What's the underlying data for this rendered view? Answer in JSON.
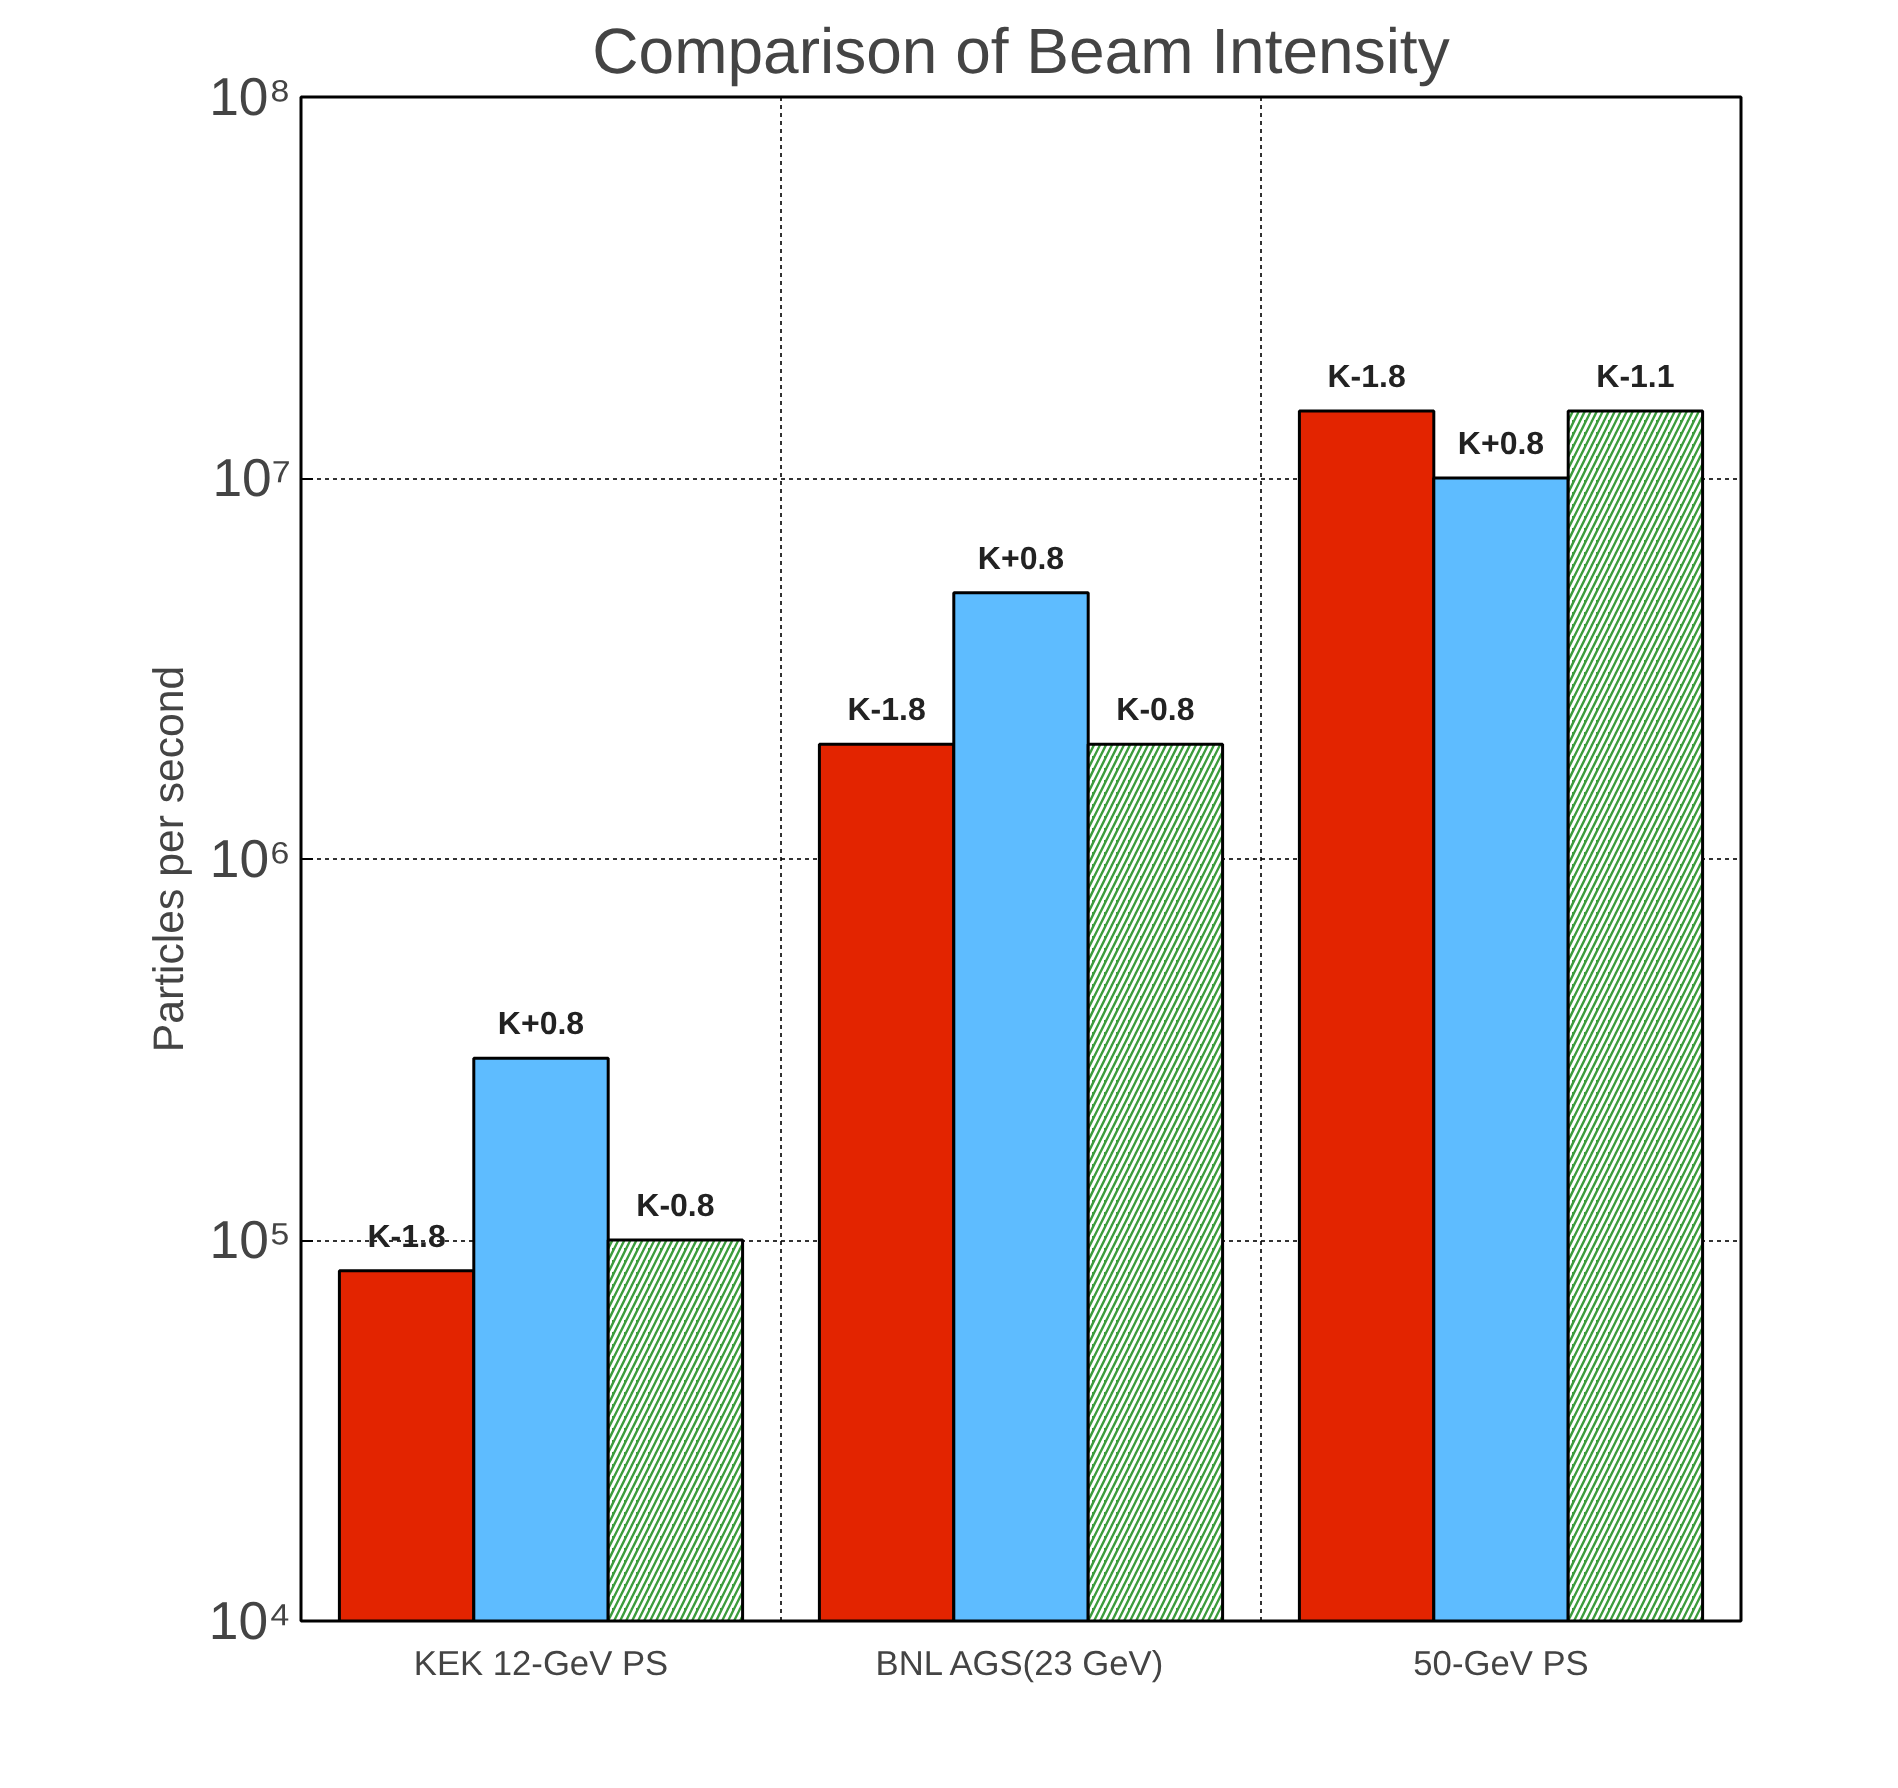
{
  "chart_data": {
    "type": "bar",
    "title": "Comparison of Beam Intensity",
    "ylabel": "Particles per second",
    "categories": [
      "KEK 12-GeV PS",
      "BNL AGS(23 GeV)",
      "50-GeV PS"
    ],
    "series": [
      {
        "color": "#e32400",
        "values": [
          83000,
          2000000,
          15000000
        ],
        "value_labels": [
          "K-1.8",
          "K-1.8",
          "K-1.8"
        ]
      },
      {
        "color": "#5ebcff",
        "values": [
          300000,
          5000000,
          10000000
        ],
        "value_labels": [
          "K+0.8",
          "K+0.8",
          "K+0.8"
        ]
      },
      {
        "color": "#3c9c3c",
        "values": [
          100000,
          2000000,
          15000000
        ],
        "value_labels": [
          "K-0.8",
          "K-0.8",
          "K-1.1"
        ]
      }
    ],
    "log": "y",
    "ylim": [
      10000,
      100000000
    ],
    "yticks": [
      {
        "value": 10000,
        "label": "10⁴"
      },
      {
        "value": 100000,
        "label": "10⁵"
      },
      {
        "value": 1000000,
        "label": "10⁶"
      },
      {
        "value": 10000000,
        "label": "10⁷"
      },
      {
        "value": 100000000,
        "label": "10⁸"
      }
    ],
    "grid": true
  }
}
